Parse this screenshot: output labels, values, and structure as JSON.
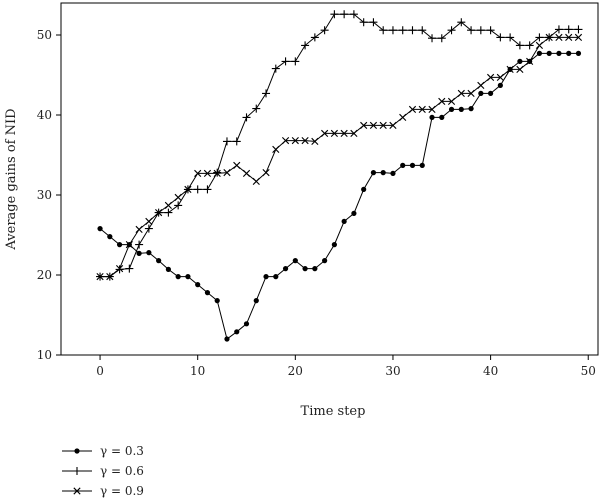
{
  "chart_data": {
    "type": "line",
    "xlabel": "Time step",
    "ylabel": "Average gains of NID",
    "xlim": [
      -4,
      51
    ],
    "ylim": [
      10,
      54
    ],
    "x_ticks": [
      0,
      10,
      20,
      30,
      40,
      50
    ],
    "y_ticks": [
      10,
      20,
      30,
      40,
      50
    ],
    "grid": false,
    "legend_position": "bottom-left",
    "x": [
      0,
      1,
      2,
      3,
      4,
      5,
      6,
      7,
      8,
      9,
      10,
      11,
      12,
      13,
      14,
      15,
      16,
      17,
      18,
      19,
      20,
      21,
      22,
      23,
      24,
      25,
      26,
      27,
      28,
      29,
      30,
      31,
      32,
      33,
      34,
      35,
      36,
      37,
      38,
      39,
      40,
      41,
      42,
      43,
      44,
      45,
      46,
      47,
      48,
      49
    ],
    "series": [
      {
        "name": "γ = 0.3",
        "marker": "dot",
        "values": [
          25.8,
          24.8,
          23.8,
          23.8,
          22.7,
          22.8,
          21.8,
          20.7,
          19.8,
          19.8,
          18.8,
          17.8,
          16.8,
          12.0,
          12.9,
          13.9,
          16.8,
          19.8,
          19.8,
          20.8,
          21.8,
          20.8,
          20.8,
          21.8,
          23.8,
          26.7,
          27.7,
          30.7,
          32.8,
          32.8,
          32.7,
          33.7,
          33.7,
          33.7,
          39.7,
          39.7,
          40.7,
          40.7,
          40.8,
          42.7,
          42.7,
          43.7,
          45.7,
          46.7,
          46.7,
          47.7,
          47.7,
          47.7,
          47.7,
          47.7
        ]
      },
      {
        "name": "γ = 0.6",
        "marker": "plus",
        "values": [
          19.8,
          19.8,
          20.7,
          20.8,
          23.8,
          25.8,
          27.8,
          27.8,
          28.7,
          30.7,
          30.7,
          30.7,
          32.8,
          36.7,
          36.7,
          39.7,
          40.8,
          42.7,
          45.8,
          46.7,
          46.7,
          48.7,
          49.7,
          50.6,
          52.6,
          52.6,
          52.6,
          51.6,
          51.6,
          50.6,
          50.6,
          50.6,
          50.6,
          50.6,
          49.6,
          49.6,
          50.6,
          51.6,
          50.6,
          50.6,
          50.6,
          49.7,
          49.7,
          48.7,
          48.7,
          49.7,
          49.7,
          50.7,
          50.7,
          50.7
        ]
      },
      {
        "name": "γ = 0.9",
        "marker": "x",
        "values": [
          19.8,
          19.8,
          20.8,
          23.8,
          25.7,
          26.7,
          27.8,
          28.7,
          29.7,
          30.7,
          32.7,
          32.7,
          32.7,
          32.8,
          33.7,
          32.7,
          31.7,
          32.8,
          35.7,
          36.8,
          36.8,
          36.8,
          36.7,
          37.7,
          37.7,
          37.7,
          37.7,
          38.7,
          38.7,
          38.7,
          38.7,
          39.7,
          40.7,
          40.7,
          40.7,
          41.7,
          41.7,
          42.7,
          42.7,
          43.7,
          44.7,
          44.7,
          45.7,
          45.7,
          46.7,
          48.7,
          49.7,
          49.7,
          49.7,
          49.7
        ]
      }
    ]
  }
}
